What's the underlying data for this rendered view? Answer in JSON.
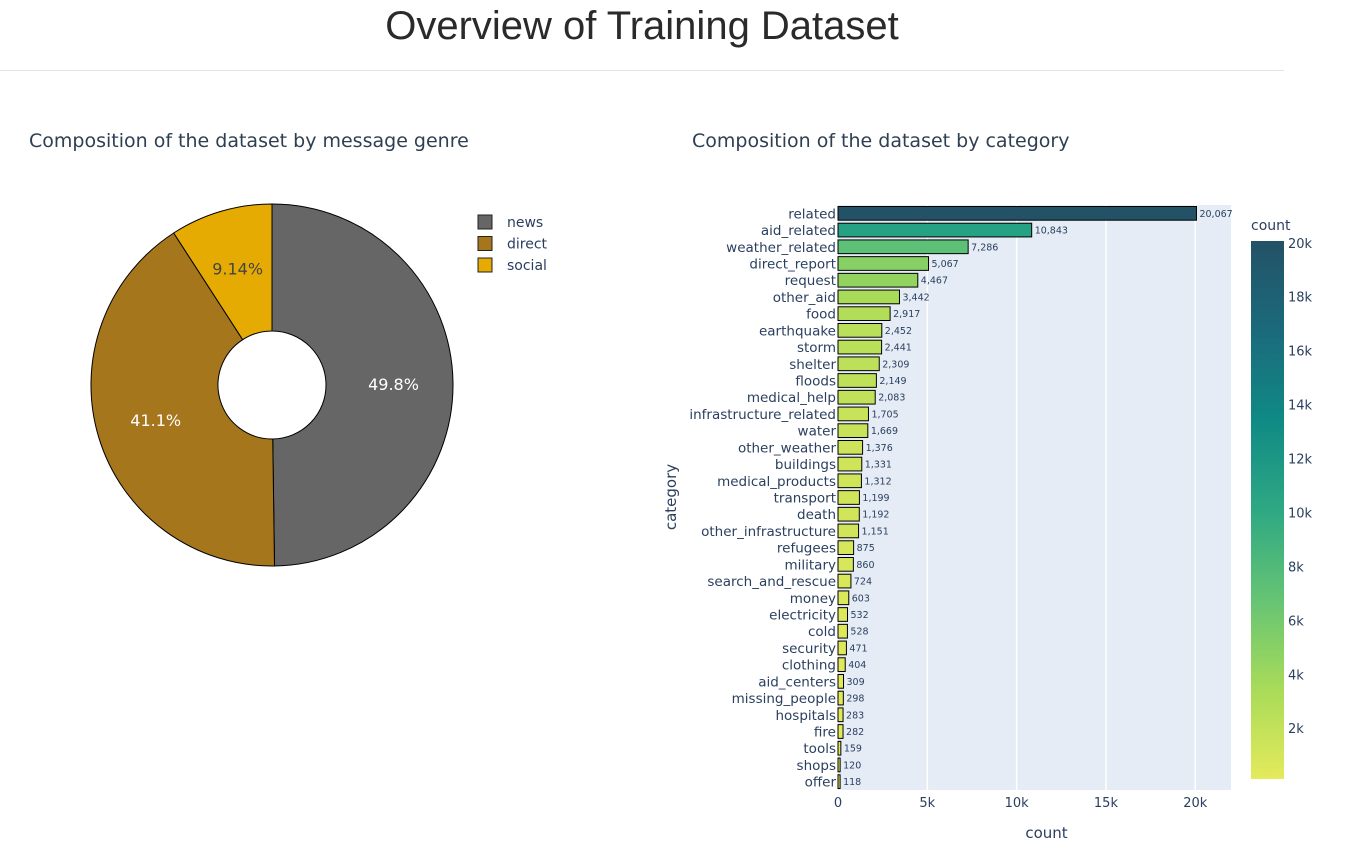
{
  "page": {
    "title": "Overview of Training Dataset"
  },
  "colors": {
    "news": "#666666",
    "direct": "#a6761d",
    "social": "#e6ab02",
    "plot_bg": "#e5ecf6",
    "text": "#2a3f5f",
    "viridis_scale": [
      "#fde725",
      "#5ec962",
      "#21918c",
      "#3b528b",
      "#440154"
    ],
    "colorbar_scale": [
      "#e4ea5b",
      "#a8db59",
      "#65c474",
      "#2ea883",
      "#0f8a85",
      "#1b6a7c",
      "#235266"
    ]
  },
  "chart_data": [
    {
      "type": "pie",
      "hole": true,
      "title": "Composition of the dataset by message genre",
      "labels": [
        "news",
        "direct",
        "social"
      ],
      "values": [
        49.8,
        41.1,
        9.14
      ],
      "text_labels": [
        "49.8%",
        "41.1%",
        "9.14%"
      ],
      "legend": {
        "position": "top-right",
        "entries": [
          "news",
          "direct",
          "social"
        ]
      }
    },
    {
      "type": "bar",
      "orientation": "horizontal",
      "title": "Composition of the dataset by category",
      "xlabel": "count",
      "ylabel": "category",
      "xlim": [
        0,
        22000
      ],
      "xticks": [
        0,
        5000,
        10000,
        15000,
        20000
      ],
      "xtick_labels": [
        "0",
        "5k",
        "10k",
        "15k",
        "20k"
      ],
      "grid": true,
      "categories": [
        "related",
        "aid_related",
        "weather_related",
        "direct_report",
        "request",
        "other_aid",
        "food",
        "earthquake",
        "storm",
        "shelter",
        "floods",
        "medical_help",
        "infrastructure_related",
        "water",
        "other_weather",
        "buildings",
        "medical_products",
        "transport",
        "death",
        "other_infrastructure",
        "refugees",
        "military",
        "search_and_rescue",
        "money",
        "electricity",
        "cold",
        "security",
        "clothing",
        "aid_centers",
        "missing_people",
        "hospitals",
        "fire",
        "tools",
        "shops",
        "offer"
      ],
      "values": [
        20067,
        10843,
        7286,
        5067,
        4467,
        3442,
        2917,
        2452,
        2441,
        2309,
        2149,
        2083,
        1705,
        1669,
        1376,
        1331,
        1312,
        1199,
        1192,
        1151,
        875,
        860,
        724,
        603,
        532,
        528,
        471,
        404,
        309,
        298,
        283,
        282,
        159,
        120,
        118
      ],
      "value_labels": [
        "20,067",
        "10,843",
        "7,286",
        "5,067",
        "4,467",
        "3,442",
        "2,917",
        "2,452",
        "2,441",
        "2,309",
        "2,149",
        "2,083",
        "1,705",
        "1,669",
        "1,376",
        "1,331",
        "1,312",
        "1,199",
        "1,192",
        "1,151",
        "875",
        "860",
        "724",
        "603",
        "532",
        "528",
        "471",
        "404",
        "309",
        "298",
        "283",
        "282",
        "159",
        "120",
        "118"
      ],
      "colorbar": {
        "title": "count",
        "range": [
          118,
          20067
        ],
        "ticks": [
          2000,
          4000,
          6000,
          8000,
          10000,
          12000,
          14000,
          16000,
          18000,
          20000
        ],
        "tick_labels": [
          "2k",
          "4k",
          "6k",
          "8k",
          "10k",
          "12k",
          "14k",
          "16k",
          "18k",
          "20k"
        ]
      }
    }
  ]
}
